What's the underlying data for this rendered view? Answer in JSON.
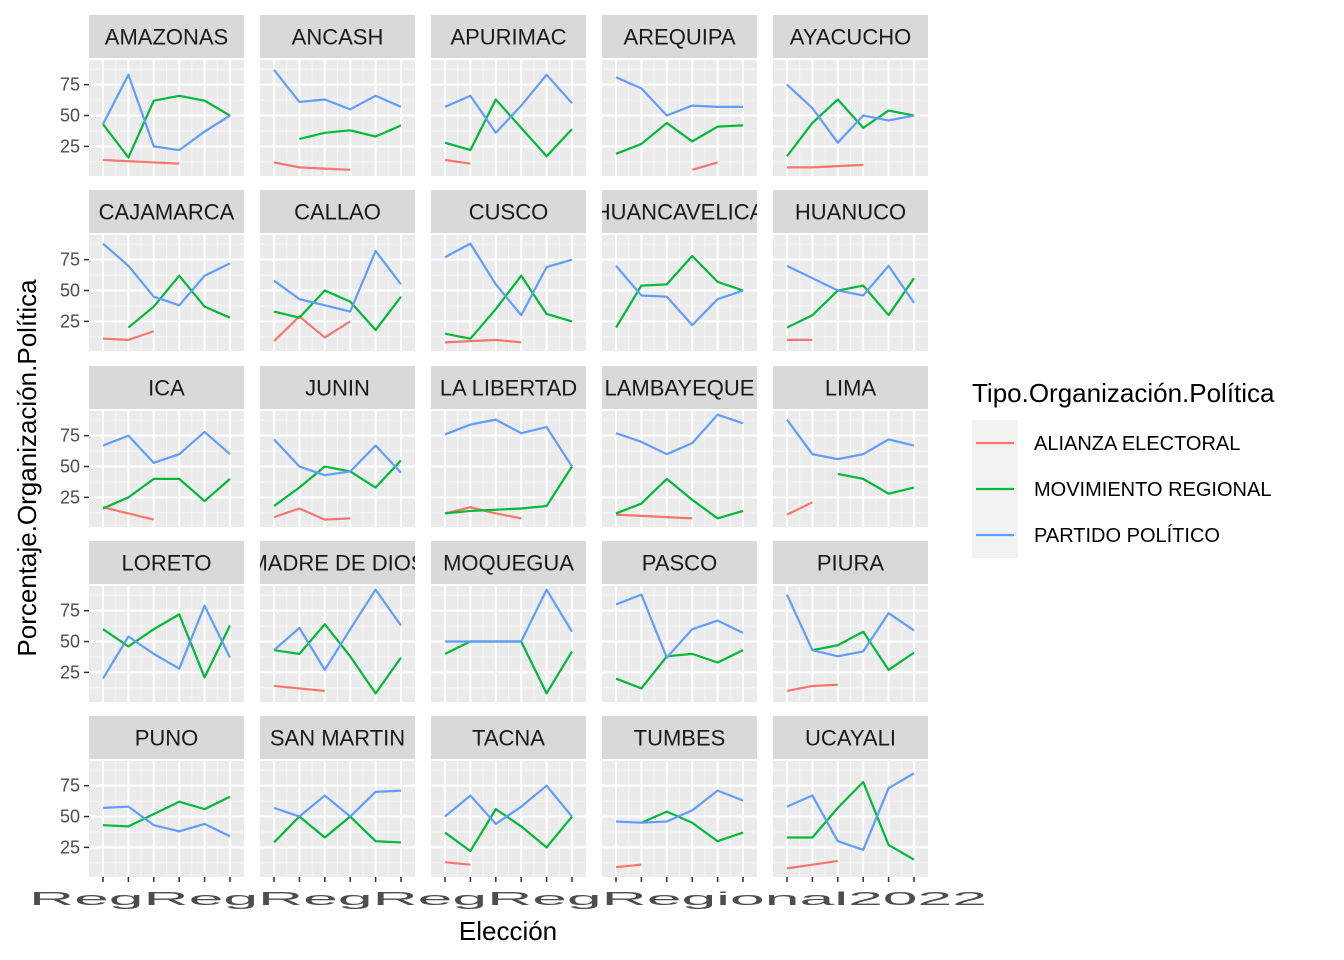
{
  "chart_data": {
    "type": "line",
    "facet_type": "wrap",
    "facet_ncol": 5,
    "xlabel": "Elección",
    "ylabel": "Porcentaje.Organización.Política",
    "yticks": [
      25,
      50,
      75
    ],
    "ylim": [
      1,
      95
    ],
    "x_count": 6,
    "x_tick_labels_rendered": "RegRegRegRegRegRegional2022",
    "legend": {
      "title": "Tipo.Organización.Política",
      "position": "right",
      "items": [
        {
          "label": "ALIANZA ELECTORAL",
          "color": "#F8766D"
        },
        {
          "label": "MOVIMIENTO REGIONAL",
          "color": "#00BA38"
        },
        {
          "label": "PARTIDO POLÍTICO",
          "color": "#619CFF"
        }
      ]
    },
    "panels": [
      {
        "name": "AMAZONAS",
        "alianza": [
          14,
          13,
          12,
          11,
          null,
          null
        ],
        "movimiento": [
          43,
          16,
          62,
          66,
          62,
          50
        ],
        "partido": [
          43,
          83,
          25,
          22,
          37,
          50
        ]
      },
      {
        "name": "ANCASH",
        "alianza": [
          12,
          8,
          7,
          6,
          null,
          null
        ],
        "movimiento": [
          null,
          31,
          36,
          38,
          33,
          42
        ],
        "partido": [
          87,
          61,
          63,
          55,
          66,
          57
        ]
      },
      {
        "name": "APURIMAC",
        "alianza": [
          14,
          11,
          null,
          null,
          null,
          null
        ],
        "movimiento": [
          28,
          22,
          63,
          40,
          17,
          39
        ],
        "partido": [
          57,
          66,
          36,
          58,
          83,
          60
        ]
      },
      {
        "name": "AREQUIPA",
        "alianza": [
          null,
          null,
          null,
          6,
          12,
          null
        ],
        "movimiento": [
          19,
          27,
          44,
          29,
          41,
          42
        ],
        "partido": [
          81,
          72,
          50,
          58,
          57,
          57
        ]
      },
      {
        "name": "AYACUCHO",
        "alianza": [
          8,
          8,
          9,
          10,
          null,
          null
        ],
        "movimiento": [
          17,
          44,
          63,
          40,
          54,
          50
        ],
        "partido": [
          75,
          56,
          28,
          50,
          46,
          50
        ]
      },
      {
        "name": "CAJAMARCA",
        "alianza": [
          11,
          10,
          17,
          null,
          null,
          null
        ],
        "movimiento": [
          null,
          20,
          37,
          62,
          37,
          28
        ],
        "partido": [
          88,
          70,
          45,
          38,
          62,
          72
        ]
      },
      {
        "name": "CALLAO",
        "alianza": [
          9,
          29,
          12,
          25,
          null,
          null
        ],
        "movimiento": [
          33,
          28,
          50,
          41,
          18,
          45
        ],
        "partido": [
          58,
          43,
          38,
          33,
          82,
          55
        ]
      },
      {
        "name": "CUSCO",
        "alianza": [
          8,
          9,
          10,
          8,
          null,
          null
        ],
        "movimiento": [
          15,
          11,
          35,
          62,
          31,
          25
        ],
        "partido": [
          77,
          88,
          55,
          30,
          69,
          75
        ]
      },
      {
        "name": "HUANCAVELICA",
        "alianza": [
          null,
          null,
          null,
          null,
          null,
          null
        ],
        "movimiento": [
          20,
          54,
          55,
          78,
          57,
          50
        ],
        "partido": [
          70,
          46,
          45,
          22,
          43,
          50
        ]
      },
      {
        "name": "HUANUCO",
        "alianza": [
          10,
          10,
          null,
          null,
          null,
          null
        ],
        "movimiento": [
          20,
          30,
          50,
          54,
          30,
          60
        ],
        "partido": [
          70,
          60,
          50,
          46,
          70,
          40
        ]
      },
      {
        "name": "ICA",
        "alianza": [
          17,
          12,
          7,
          null,
          null,
          null
        ],
        "movimiento": [
          16,
          25,
          40,
          40,
          22,
          40
        ],
        "partido": [
          67,
          75,
          53,
          60,
          78,
          60
        ]
      },
      {
        "name": "JUNIN",
        "alianza": [
          9,
          16,
          7,
          8,
          null,
          null
        ],
        "movimiento": [
          18,
          33,
          50,
          46,
          33,
          55
        ],
        "partido": [
          72,
          50,
          43,
          46,
          67,
          45
        ]
      },
      {
        "name": "LA LIBERTAD",
        "alianza": [
          12,
          17,
          12,
          8,
          null,
          null
        ],
        "movimiento": [
          12,
          14,
          15,
          16,
          18,
          50
        ],
        "partido": [
          76,
          84,
          88,
          77,
          82,
          50
        ]
      },
      {
        "name": "LAMBAYEQUE",
        "alianza": [
          11,
          10,
          9,
          8,
          null,
          null
        ],
        "movimiento": [
          12,
          20,
          40,
          23,
          8,
          14
        ],
        "partido": [
          77,
          70,
          60,
          69,
          92,
          85
        ]
      },
      {
        "name": "LIMA",
        "alianza": [
          11,
          21,
          null,
          null,
          null,
          null
        ],
        "movimiento": [
          null,
          null,
          44,
          40,
          28,
          33
        ],
        "partido": [
          88,
          60,
          56,
          60,
          72,
          67
        ]
      },
      {
        "name": "LORETO",
        "alianza": [
          null,
          null,
          null,
          null,
          null,
          null
        ],
        "movimiento": [
          60,
          46,
          60,
          72,
          21,
          63
        ],
        "partido": [
          20,
          54,
          40,
          28,
          79,
          37
        ]
      },
      {
        "name": "MADRE DE DIOS",
        "alianza": [
          14,
          12,
          10,
          null,
          null,
          null
        ],
        "movimiento": [
          43,
          40,
          64,
          38,
          8,
          37
        ],
        "partido": [
          43,
          61,
          27,
          60,
          92,
          63
        ]
      },
      {
        "name": "MOQUEGUA",
        "alianza": [
          null,
          null,
          null,
          null,
          null,
          null
        ],
        "movimiento": [
          40,
          50,
          50,
          50,
          8,
          42
        ],
        "partido": [
          50,
          50,
          50,
          50,
          92,
          58
        ]
      },
      {
        "name": "PASCO",
        "alianza": [
          null,
          null,
          null,
          null,
          null,
          null
        ],
        "movimiento": [
          20,
          12,
          38,
          40,
          33,
          43
        ],
        "partido": [
          80,
          88,
          37,
          60,
          67,
          57
        ]
      },
      {
        "name": "PIURA",
        "alianza": [
          10,
          14,
          15,
          null,
          null,
          null
        ],
        "movimiento": [
          null,
          43,
          47,
          58,
          27,
          41
        ],
        "partido": [
          88,
          43,
          38,
          42,
          73,
          59
        ]
      },
      {
        "name": "PUNO",
        "alianza": [
          null,
          null,
          null,
          null,
          null,
          null
        ],
        "movimiento": [
          43,
          42,
          52,
          62,
          56,
          66
        ],
        "partido": [
          57,
          58,
          43,
          38,
          44,
          34
        ]
      },
      {
        "name": "SAN MARTIN",
        "alianza": [
          null,
          null,
          null,
          null,
          null,
          null
        ],
        "movimiento": [
          29,
          50,
          33,
          50,
          30,
          29
        ],
        "partido": [
          57,
          50,
          67,
          50,
          70,
          71
        ]
      },
      {
        "name": "TACNA",
        "alianza": [
          13,
          11,
          null,
          null,
          null,
          null
        ],
        "movimiento": [
          37,
          22,
          56,
          42,
          25,
          50
        ],
        "partido": [
          50,
          67,
          44,
          58,
          75,
          50
        ]
      },
      {
        "name": "TUMBES",
        "alianza": [
          9,
          11,
          null,
          null,
          null,
          null
        ],
        "movimiento": [
          null,
          45,
          54,
          45,
          30,
          37
        ],
        "partido": [
          46,
          45,
          46,
          55,
          71,
          63
        ]
      },
      {
        "name": "UCAYALI",
        "alianza": [
          8,
          11,
          14,
          null,
          null,
          null
        ],
        "movimiento": [
          33,
          33,
          57,
          78,
          27,
          15
        ],
        "partido": [
          58,
          67,
          30,
          23,
          73,
          85
        ]
      }
    ]
  }
}
